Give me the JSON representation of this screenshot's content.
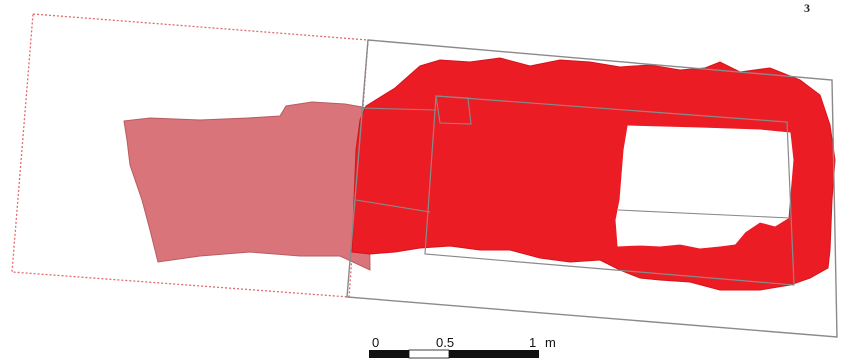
{
  "map": {
    "corner_label": "3",
    "colors": {
      "excavated_area": "#ec1c24",
      "projected_area": "#d9757a",
      "projected_outline": "#e36a6a",
      "trench_outline": "#8a8a8a",
      "unexcavated_block": "#ffffff"
    }
  },
  "scale_bar": {
    "labels": [
      "0",
      "0.5",
      "1"
    ],
    "unit": "m",
    "segments": [
      "black",
      "white",
      "black"
    ]
  }
}
